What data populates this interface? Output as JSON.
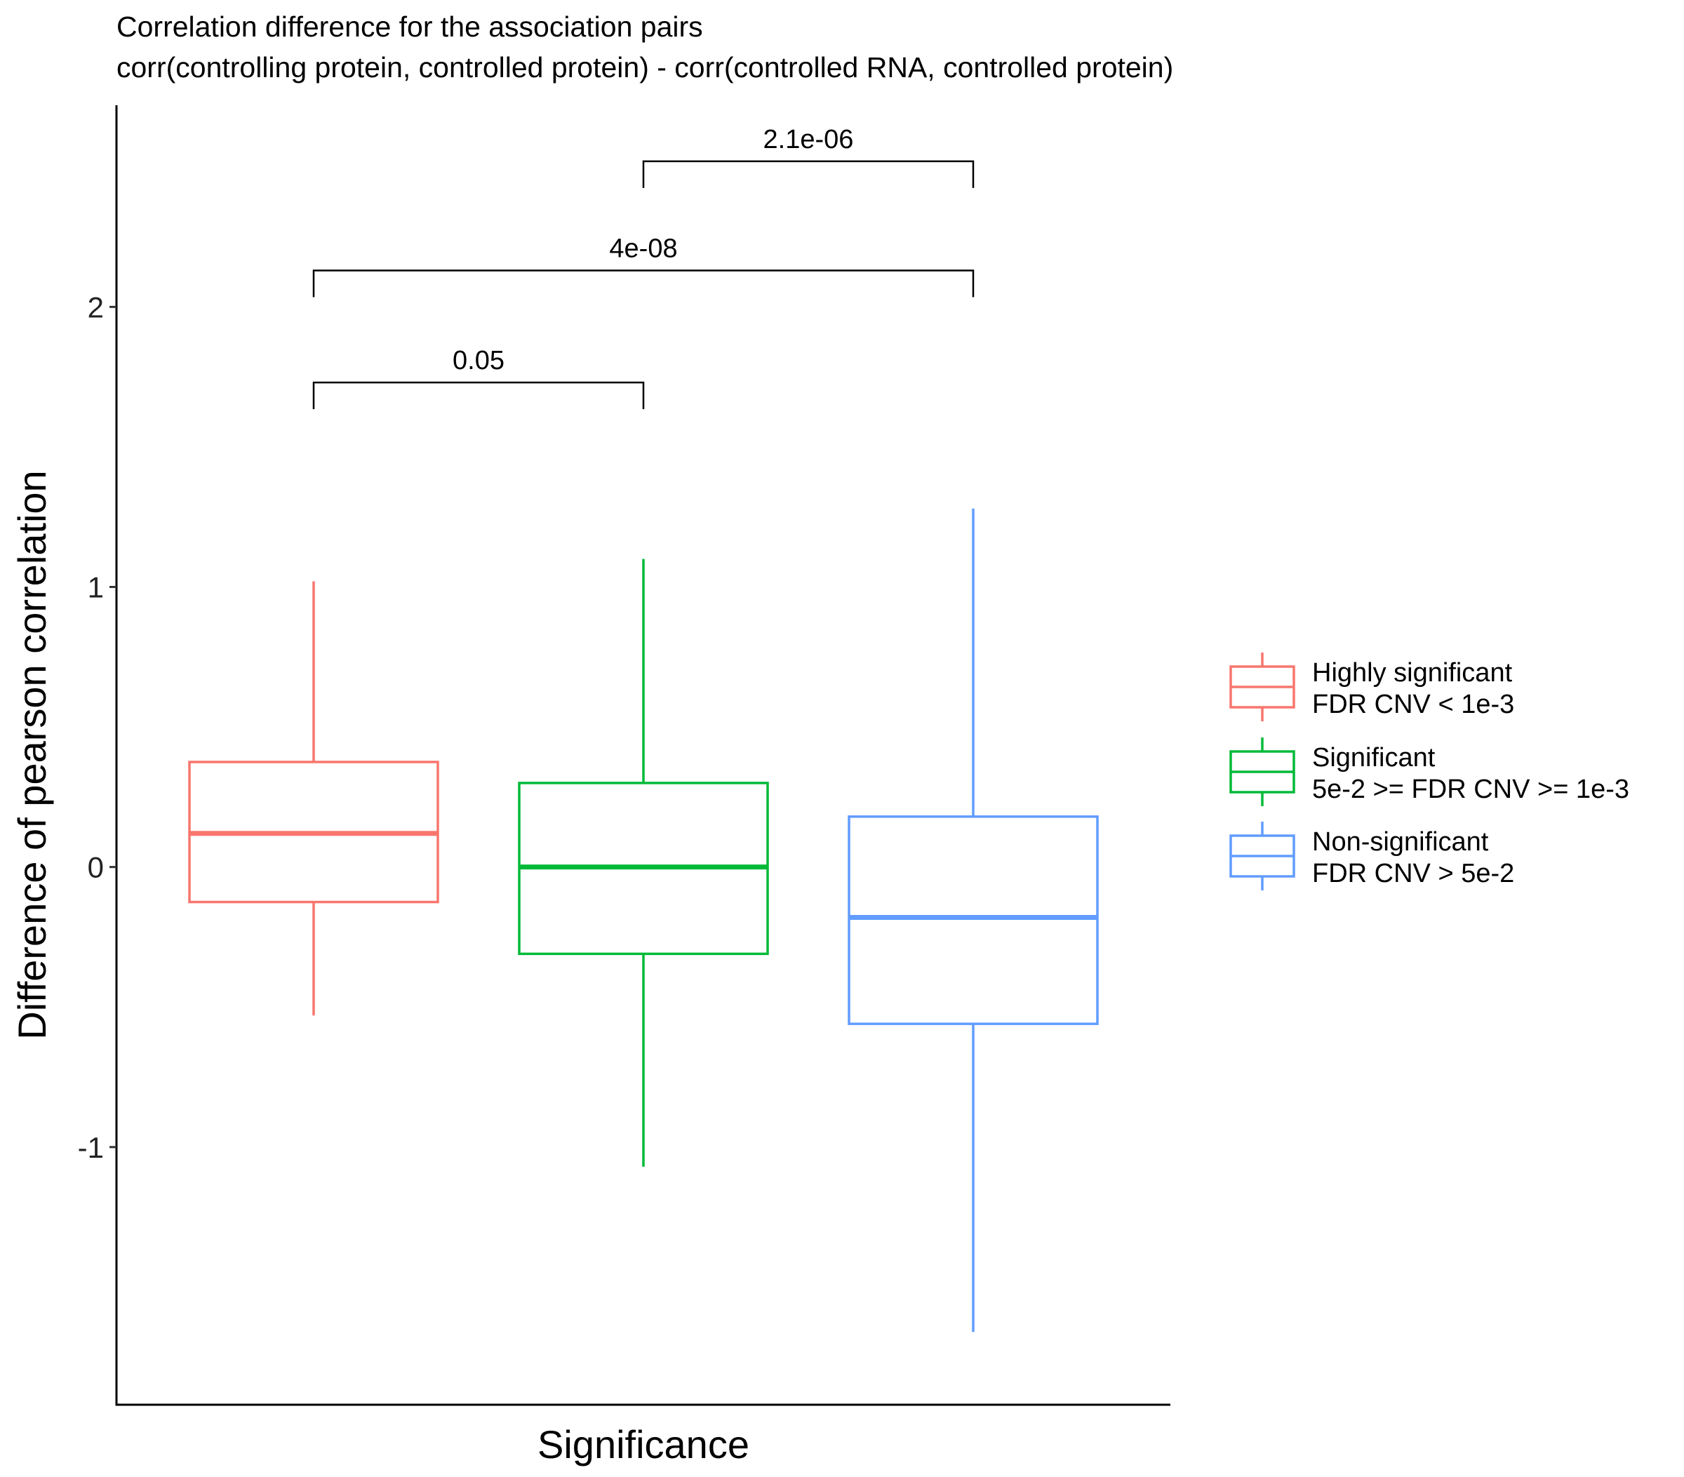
{
  "chart_data": {
    "type": "box",
    "title": "Correlation difference for the association pairs",
    "subtitle": "corr(controlling protein, controlled protein) - corr(controlled RNA, controlled protein)",
    "xlabel": "Significance",
    "ylabel": "Difference of pearson correlation",
    "ylim": [
      -1.92,
      2.72
    ],
    "yticks": [
      {
        "value": -1,
        "label": "-1"
      },
      {
        "value": 0,
        "label": "0"
      },
      {
        "value": 1,
        "label": "1"
      },
      {
        "value": 2,
        "label": "2"
      }
    ],
    "grid": false,
    "legend_position": "right",
    "series": [
      {
        "name": "Highly significant\nFDR CNV < 1e-3",
        "color": "#F8766D",
        "whisker_low": -0.53,
        "q1": -0.125,
        "median": 0.12,
        "q3": 0.375,
        "whisker_high": 1.02
      },
      {
        "name": "Significant\n5e-2 >= FDR CNV >= 1e-3",
        "color": "#00BA38",
        "whisker_low": -1.07,
        "q1": -0.31,
        "median": 0.0,
        "q3": 0.3,
        "whisker_high": 1.1
      },
      {
        "name": "Non-significant\nFDR CNV > 5e-2",
        "color": "#619CFF",
        "whisker_low": -1.66,
        "q1": -0.56,
        "median": -0.18,
        "q3": 0.18,
        "whisker_high": 1.28
      }
    ],
    "comparisons": [
      {
        "groups": [
          0,
          1
        ],
        "label": "0.05",
        "y": 1.73
      },
      {
        "groups": [
          0,
          2
        ],
        "label": "4e-08",
        "y": 2.13
      },
      {
        "groups": [
          1,
          2
        ],
        "label": "2.1e-06",
        "y": 2.52
      }
    ]
  }
}
